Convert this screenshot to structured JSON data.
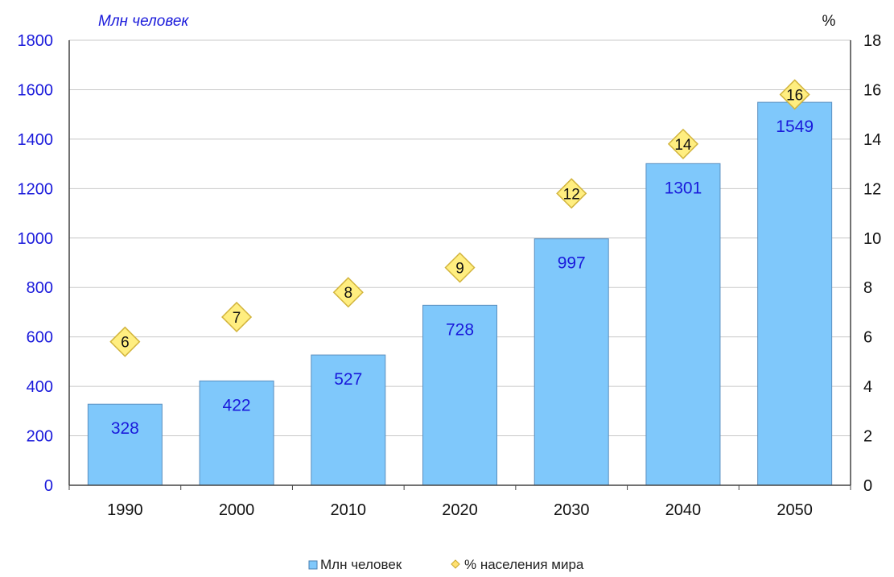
{
  "chart_data": {
    "type": "bar",
    "categories": [
      "1990",
      "2000",
      "2010",
      "2020",
      "2030",
      "2040",
      "2050"
    ],
    "series": [
      {
        "name": "Млн человек",
        "axis": "left",
        "values": [
          328,
          422,
          527,
          728,
          997,
          1301,
          1549
        ],
        "color": "#7fc8fb"
      },
      {
        "name": "% населения мира",
        "axis": "right",
        "marker": "diamond",
        "values": [
          6,
          7,
          8,
          9,
          12,
          14,
          16
        ],
        "color": "#ffee80"
      }
    ],
    "ylabel": "Млн человек",
    "y2label": "%",
    "ylim": [
      0,
      1800
    ],
    "yticks": [
      0,
      200,
      400,
      600,
      800,
      1000,
      1200,
      1400,
      1600,
      1800
    ],
    "y2lim": [
      0,
      18
    ],
    "y2ticks": [
      0,
      2,
      4,
      6,
      8,
      10,
      12,
      14,
      16,
      18
    ],
    "grid": true,
    "legend_position": "bottom"
  },
  "legend": {
    "bars_label": "Млн  человек",
    "markers_label": "% населения мира"
  }
}
